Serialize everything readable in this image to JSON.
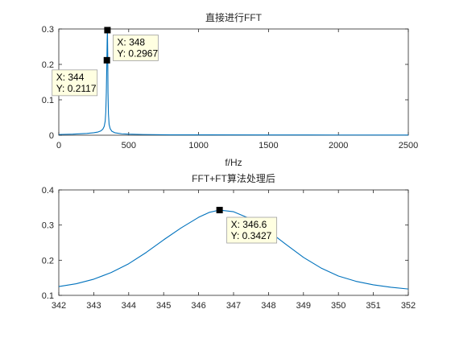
{
  "colors": {
    "line": "#0072bd",
    "axis": "#262626",
    "datatip_bg": "#ffffe1",
    "datatip_border": "#a0a0a0",
    "marker": "#000000"
  },
  "chart_data": [
    {
      "type": "line",
      "title": "直接进行FFT",
      "xlabel": "f/Hz",
      "ylabel": "",
      "xlim": [
        0,
        2500
      ],
      "ylim": [
        0,
        0.3
      ],
      "xticks": [
        0,
        500,
        1000,
        1500,
        2000,
        2500
      ],
      "yticks": [
        0,
        0.1,
        0.2,
        0.3
      ],
      "x_tick_labels": [
        "0",
        "500",
        "1000",
        "1500",
        "2000",
        "2500"
      ],
      "y_tick_labels": [
        "0",
        "0.1",
        "0.2",
        "0.3"
      ],
      "grid": false,
      "series": [
        {
          "x": [
            0,
            100,
            200,
            250,
            280,
            300,
            315,
            325,
            332,
            336,
            340,
            344,
            346,
            348,
            350,
            352,
            355,
            360,
            368,
            380,
            400,
            450,
            500,
            600,
            800,
            1000,
            1500,
            2000,
            2500
          ],
          "y": [
            0.002,
            0.003,
            0.005,
            0.007,
            0.009,
            0.012,
            0.017,
            0.025,
            0.04,
            0.065,
            0.12,
            0.2117,
            0.27,
            0.2967,
            0.23,
            0.12,
            0.06,
            0.03,
            0.018,
            0.011,
            0.007,
            0.004,
            0.003,
            0.002,
            0.001,
            0.001,
            0.0008,
            0.0006,
            0.0005
          ]
        }
      ],
      "datatips": [
        {
          "x": 348,
          "y": 0.2967,
          "x_text": "X: 348",
          "y_text": "Y: 0.2967",
          "side": "right"
        },
        {
          "x": 344,
          "y": 0.2117,
          "x_text": "X: 344",
          "y_text": "Y: 0.2117",
          "side": "left"
        }
      ]
    },
    {
      "type": "line",
      "title": "FFT+FT算法处理后",
      "xlabel": "",
      "ylabel": "",
      "xlim": [
        342,
        352
      ],
      "ylim": [
        0.1,
        0.4
      ],
      "xticks": [
        342,
        343,
        344,
        345,
        346,
        347,
        348,
        349,
        350,
        351,
        352
      ],
      "yticks": [
        0.1,
        0.2,
        0.3,
        0.4
      ],
      "x_tick_labels": [
        "342",
        "343",
        "344",
        "345",
        "346",
        "347",
        "348",
        "349",
        "350",
        "351",
        "352"
      ],
      "y_tick_labels": [
        "0.1",
        "0.2",
        "0.3",
        "0.4"
      ],
      "grid": false,
      "series": [
        {
          "x": [
            342,
            342.5,
            343,
            343.5,
            344,
            344.5,
            345,
            345.5,
            346,
            346.3,
            346.6,
            347,
            347.5,
            348,
            348.5,
            349,
            349.5,
            350,
            350.5,
            351,
            351.5,
            352
          ],
          "y": [
            0.125,
            0.133,
            0.146,
            0.165,
            0.19,
            0.222,
            0.258,
            0.292,
            0.322,
            0.336,
            0.3427,
            0.338,
            0.317,
            0.283,
            0.245,
            0.208,
            0.178,
            0.155,
            0.14,
            0.13,
            0.123,
            0.118
          ]
        }
      ],
      "datatips": [
        {
          "x": 346.6,
          "y": 0.3427,
          "x_text": "X: 346.6",
          "y_text": "Y: 0.3427",
          "side": "right-below"
        }
      ]
    }
  ]
}
